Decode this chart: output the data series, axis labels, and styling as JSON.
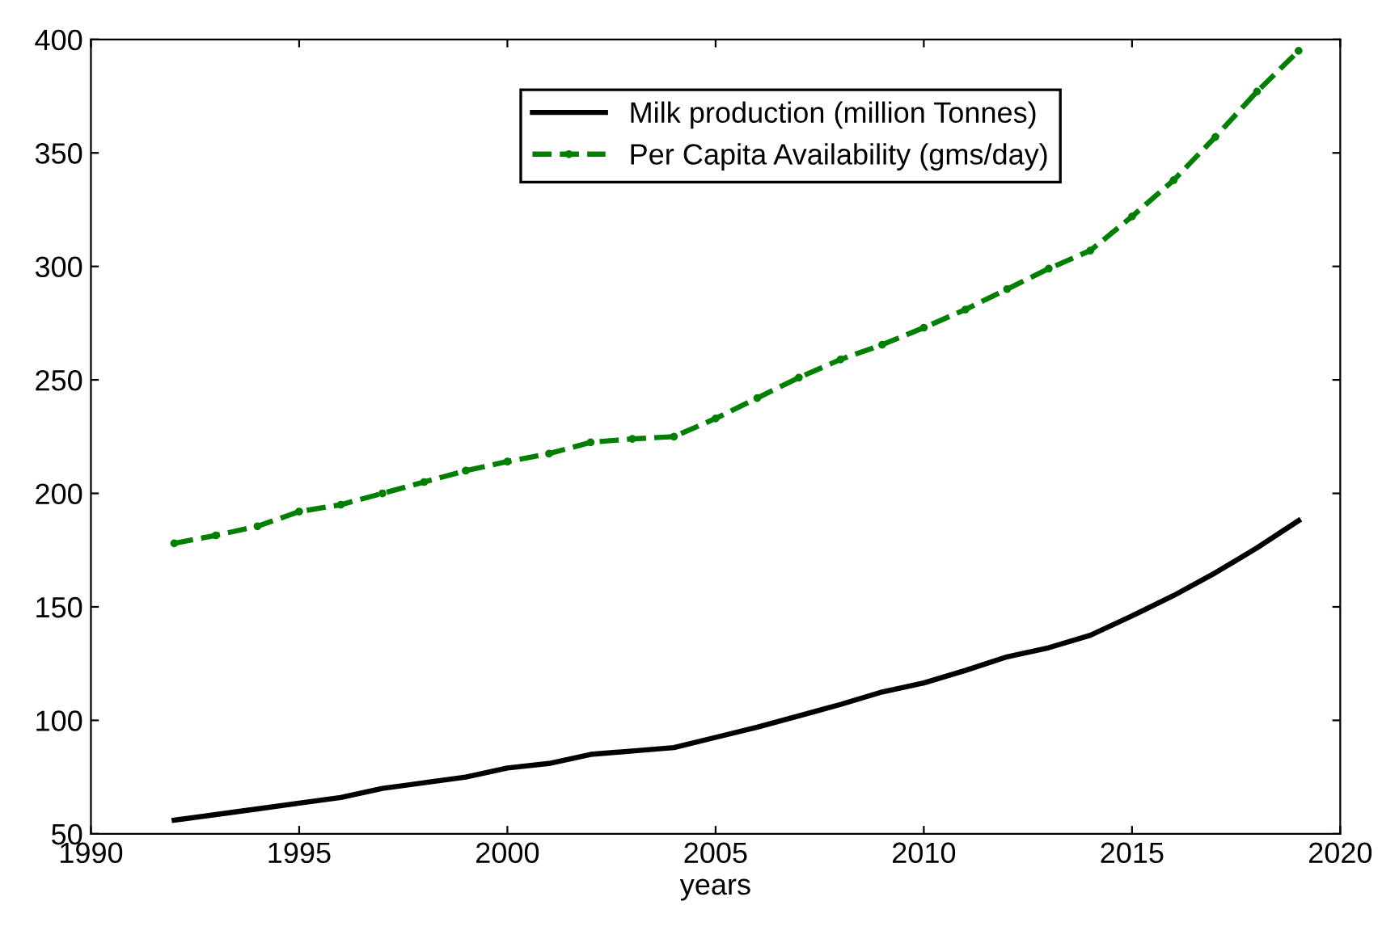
{
  "chart_data": {
    "type": "line",
    "xlabel": "years",
    "x": [
      1992,
      1993,
      1994,
      1995,
      1996,
      1997,
      1998,
      1999,
      2000,
      2001,
      2002,
      2003,
      2004,
      2005,
      2006,
      2007,
      2008,
      2009,
      2010,
      2011,
      2012,
      2013,
      2014,
      2015,
      2016,
      2017,
      2018,
      2019
    ],
    "series": [
      {
        "name": "Milk production (million Tonnes)",
        "color": "#000000",
        "line_style": "solid",
        "marker": "none",
        "values": [
          56,
          58.5,
          61,
          63.5,
          66,
          70,
          72.5,
          75,
          79,
          81,
          85,
          86.5,
          88,
          92.5,
          97,
          102,
          107,
          112.5,
          116.5,
          122,
          128,
          132,
          137.5,
          146,
          155,
          165,
          176,
          188
        ]
      },
      {
        "name": "Per Capita Availability (gms/day)",
        "color": "#008000",
        "line_style": "dashed",
        "marker": "circle",
        "values": [
          178,
          181.5,
          185.5,
          192,
          195,
          200,
          205,
          210,
          214,
          217.5,
          222.5,
          224,
          225,
          233,
          242,
          251,
          259,
          265.5,
          273,
          281,
          290,
          299,
          307,
          322,
          338,
          357,
          377,
          395
        ]
      }
    ],
    "xlim": [
      1990,
      2020
    ],
    "xticks": [
      1990,
      1995,
      2000,
      2005,
      2010,
      2015,
      2020
    ],
    "ylim": [
      50,
      400
    ],
    "yticks": [
      50,
      100,
      150,
      200,
      250,
      300,
      350,
      400
    ],
    "grid": false,
    "legend": "top"
  }
}
